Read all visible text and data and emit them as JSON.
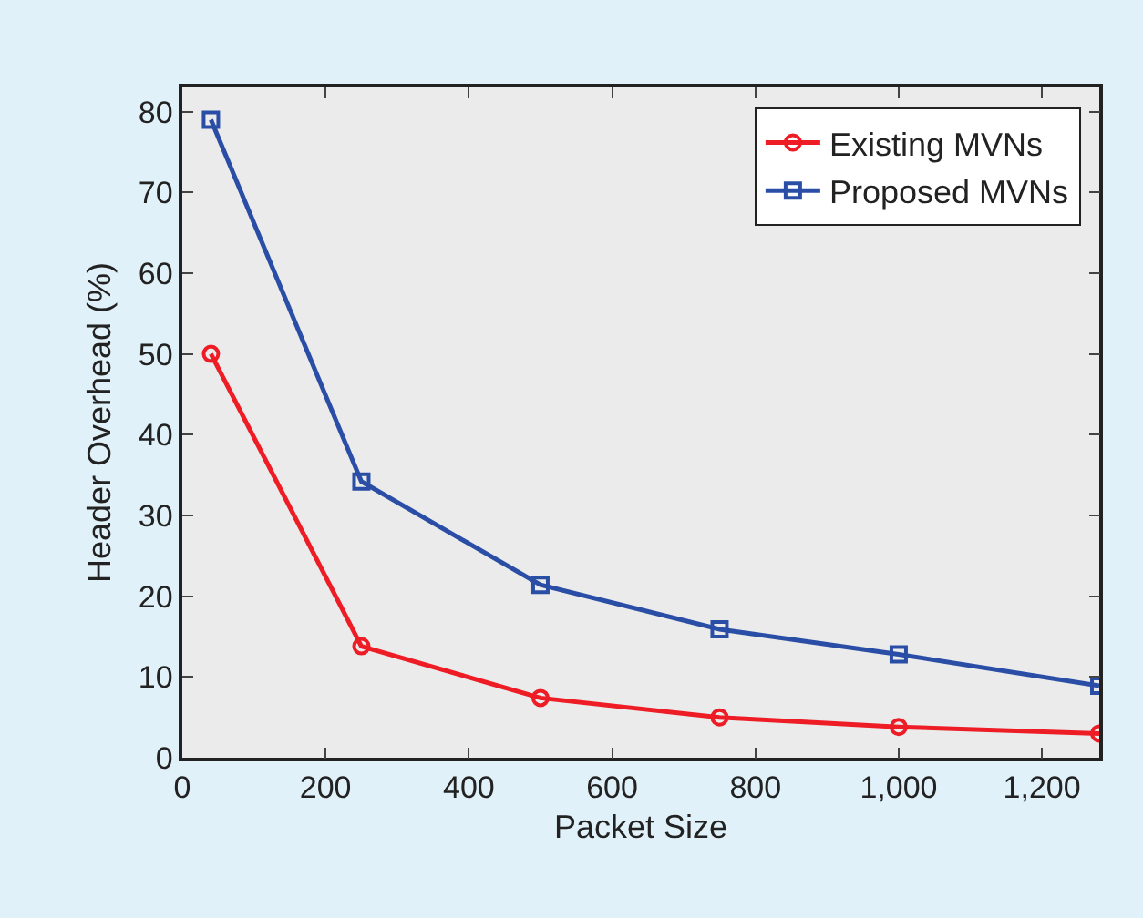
{
  "chart_data": {
    "type": "line",
    "xlabel": "Packet Size",
    "ylabel": "Header Overhead (%)",
    "x": [
      40,
      250,
      500,
      750,
      1000,
      1280
    ],
    "series": [
      {
        "name": "Existing MVNs",
        "color": "#ee1c25",
        "marker": "circle",
        "values": [
          50,
          13.8,
          7.4,
          5,
          3.8,
          3
        ]
      },
      {
        "name": "Proposed MVNs",
        "color": "#2a4ea6",
        "marker": "square",
        "values": [
          79,
          34.2,
          21.4,
          15.9,
          12.8,
          8.9
        ]
      }
    ],
    "xlim": [
      0,
      1280
    ],
    "xticks": [
      0,
      200,
      400,
      600,
      {
        "value": 800,
        "label": "800"
      },
      {
        "value": 1000,
        "label": "1,000"
      },
      {
        "value": 1200,
        "label": "1,200"
      }
    ],
    "ylim": [
      0,
      83
    ],
    "yticks": [
      0,
      10,
      20,
      30,
      40,
      50,
      60,
      70,
      80
    ],
    "grid": false,
    "legend": "top right",
    "line_style": "solid"
  }
}
